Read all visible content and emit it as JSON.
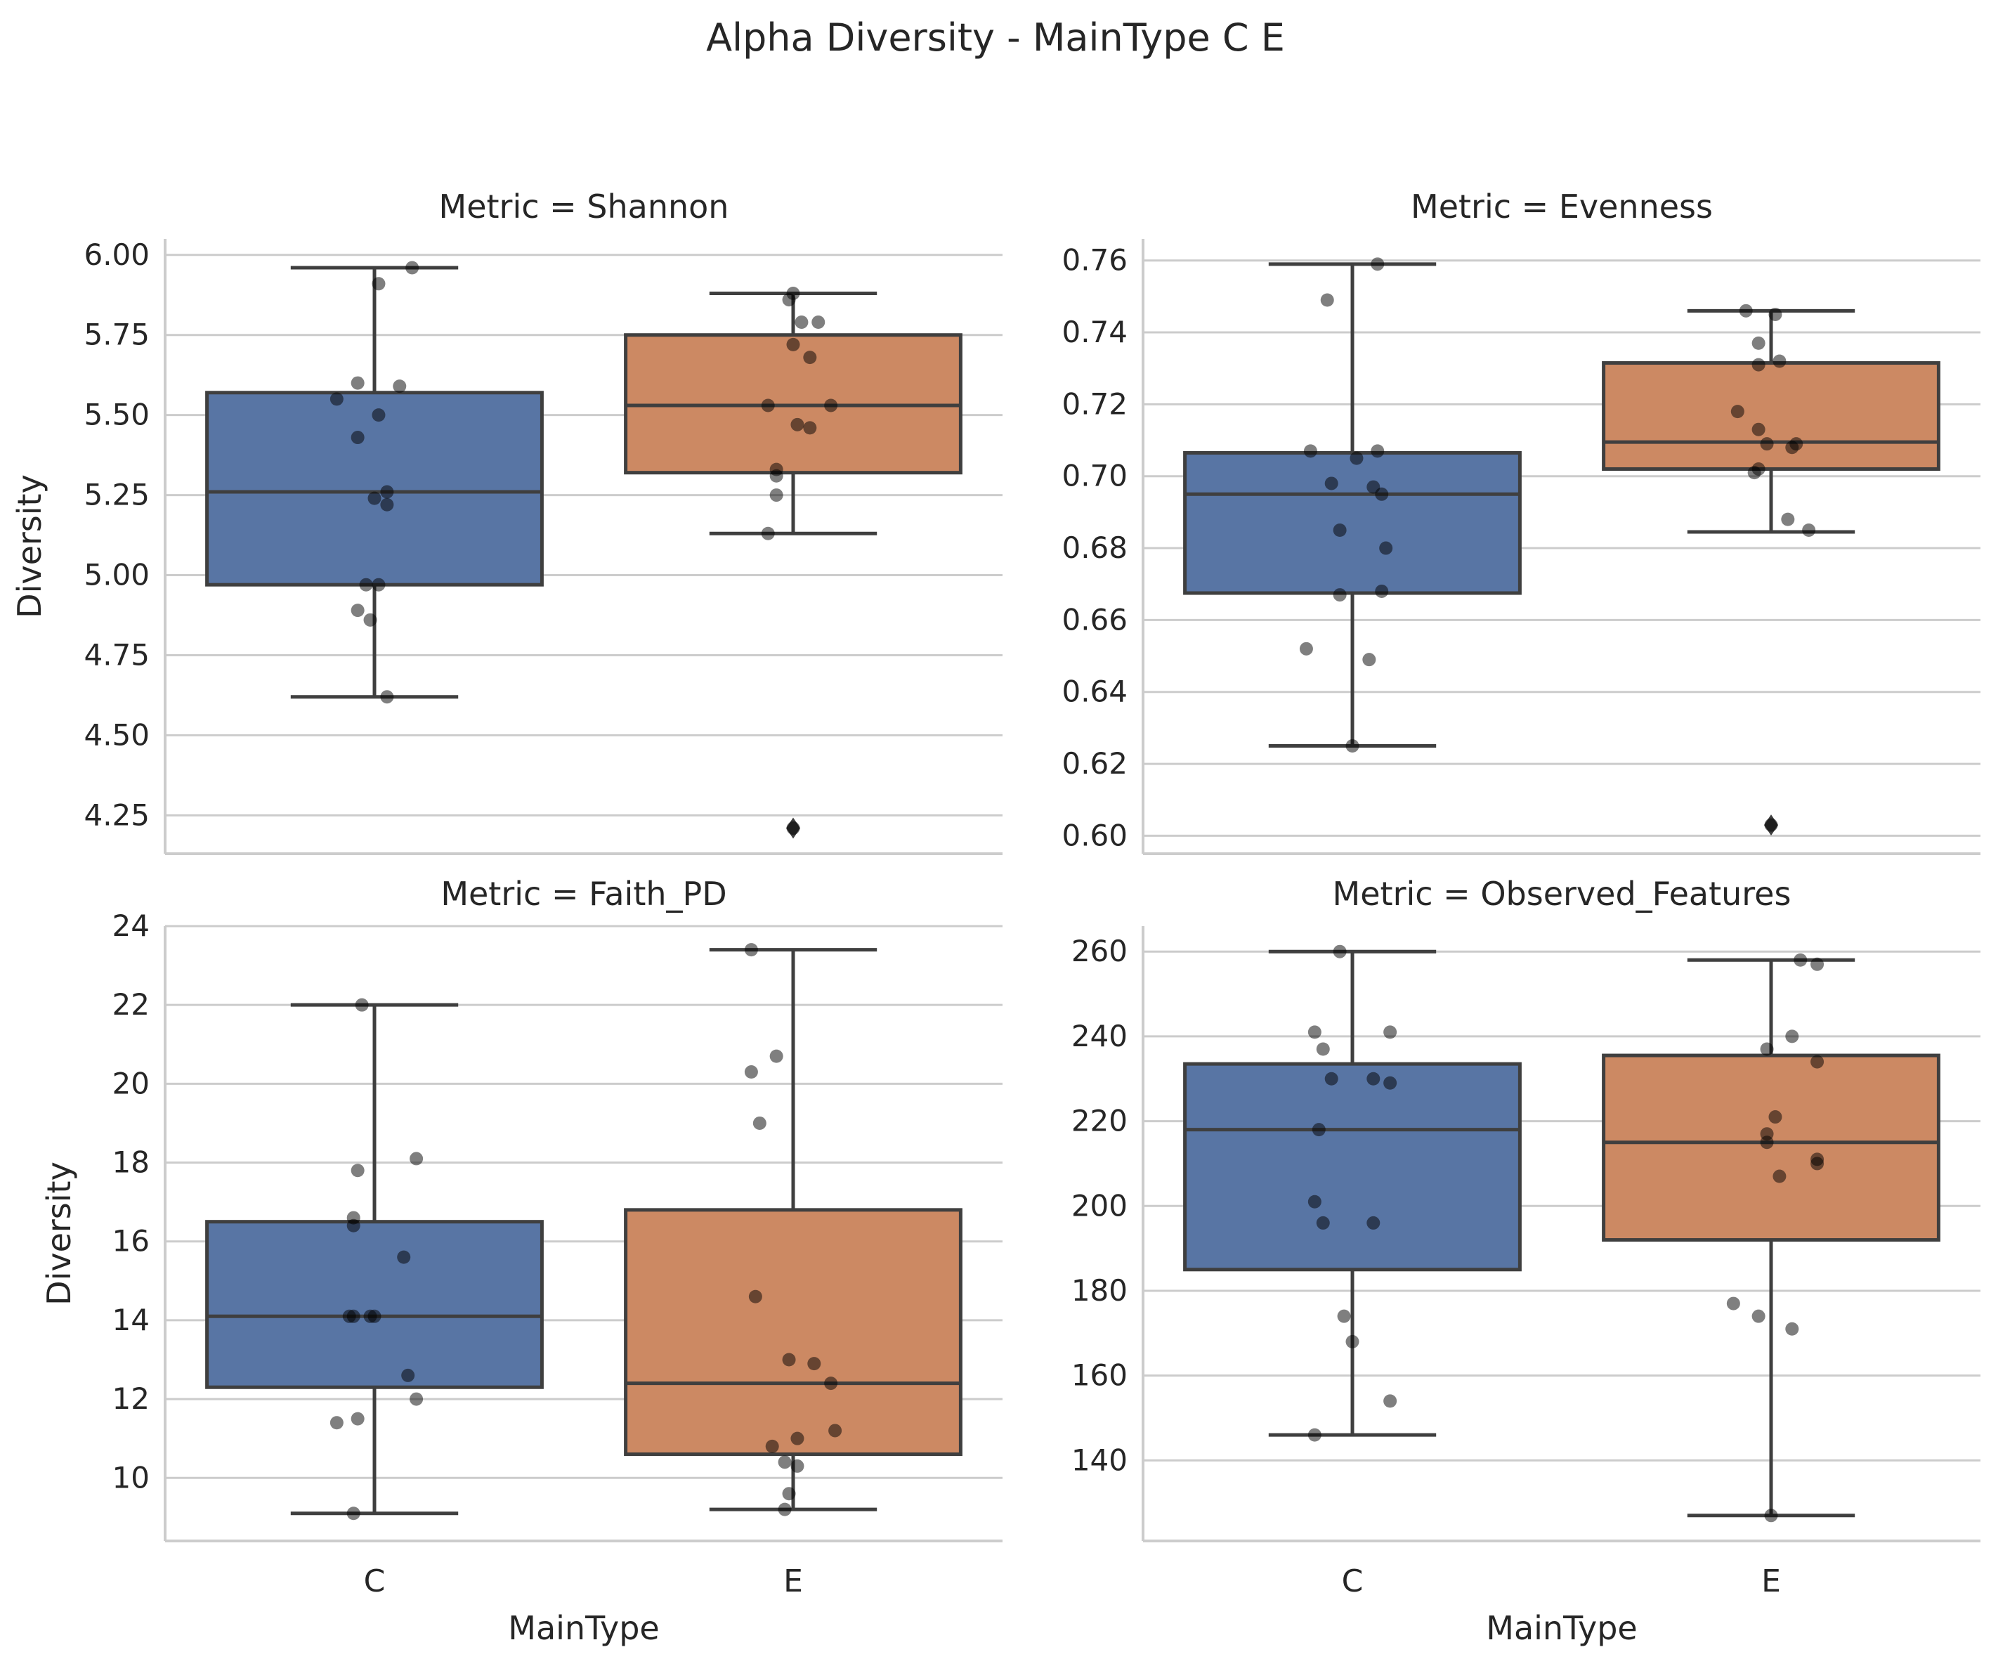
{
  "figure": {
    "title": "Alpha Diversity - MainType C E"
  },
  "colors": {
    "C": "#5875a4",
    "E": "#cc8963",
    "grid": "#cccccc",
    "box_edge": "#3f3f3f",
    "points": "#000000",
    "spine": "#cccccc"
  },
  "chart_data": [
    {
      "type": "box",
      "title": "Metric = Shannon",
      "xlabel": "",
      "ylabel": "Diversity",
      "categories": [
        "C",
        "E"
      ],
      "show_x_ticklabels": false,
      "ylim": [
        4.13,
        6.05
      ],
      "yticks": [
        4.25,
        4.5,
        4.75,
        5.0,
        5.25,
        5.5,
        5.75,
        6.0
      ],
      "ytick_labels": [
        "4.25",
        "4.50",
        "4.75",
        "5.00",
        "5.25",
        "5.50",
        "5.75",
        "6.00"
      ],
      "boxes": [
        {
          "category": "C",
          "whisker_low": 4.62,
          "q1": 4.97,
          "median": 5.26,
          "q3": 5.57,
          "whisker_high": 5.96,
          "outliers": []
        },
        {
          "category": "E",
          "whisker_low": 5.13,
          "q1": 5.32,
          "median": 5.53,
          "q3": 5.75,
          "whisker_high": 5.88,
          "outliers": [
            4.21
          ]
        }
      ],
      "points": [
        {
          "category": "C",
          "values": [
            5.96,
            5.91,
            5.6,
            5.59,
            5.55,
            5.5,
            5.43,
            5.26,
            5.24,
            5.22,
            4.97,
            4.97,
            4.89,
            4.86,
            4.62
          ],
          "offsets": [
            0.09,
            0.01,
            -0.04,
            0.06,
            -0.09,
            0.01,
            -0.04,
            0.03,
            0.0,
            0.03,
            -0.02,
            0.01,
            -0.04,
            -0.01,
            0.03
          ]
        },
        {
          "category": "E",
          "values": [
            5.88,
            5.86,
            5.79,
            5.79,
            5.72,
            5.68,
            5.53,
            5.53,
            5.47,
            5.46,
            5.33,
            5.31,
            5.25,
            5.13,
            4.21
          ],
          "offsets": [
            0.0,
            -0.01,
            0.02,
            0.06,
            0.0,
            0.04,
            -0.06,
            0.09,
            0.01,
            0.04,
            -0.04,
            -0.04,
            -0.04,
            -0.06,
            0.0
          ]
        }
      ]
    },
    {
      "type": "box",
      "title": "Metric = Evenness",
      "xlabel": "",
      "ylabel": "",
      "categories": [
        "C",
        "E"
      ],
      "show_x_ticklabels": false,
      "ylim": [
        0.595,
        0.766
      ],
      "yticks": [
        0.6,
        0.62,
        0.64,
        0.66,
        0.68,
        0.7,
        0.72,
        0.74,
        0.76
      ],
      "ytick_labels": [
        "0.60",
        "0.62",
        "0.64",
        "0.66",
        "0.68",
        "0.70",
        "0.72",
        "0.74",
        "0.76"
      ],
      "boxes": [
        {
          "category": "C",
          "whisker_low": 0.625,
          "q1": 0.6675,
          "median": 0.695,
          "q3": 0.7065,
          "whisker_high": 0.759,
          "outliers": []
        },
        {
          "category": "E",
          "whisker_low": 0.6845,
          "q1": 0.702,
          "median": 0.7095,
          "q3": 0.7315,
          "whisker_high": 0.746,
          "outliers": [
            0.603
          ]
        }
      ],
      "points": [
        {
          "category": "C",
          "values": [
            0.759,
            0.749,
            0.707,
            0.707,
            0.705,
            0.698,
            0.697,
            0.695,
            0.685,
            0.68,
            0.668,
            0.667,
            0.652,
            0.649,
            0.625
          ],
          "offsets": [
            0.06,
            -0.06,
            -0.1,
            0.06,
            0.01,
            -0.05,
            0.05,
            0.07,
            -0.03,
            0.08,
            0.07,
            -0.03,
            -0.11,
            0.04,
            0.0
          ]
        },
        {
          "category": "E",
          "values": [
            0.746,
            0.745,
            0.737,
            0.732,
            0.731,
            0.718,
            0.713,
            0.709,
            0.709,
            0.708,
            0.702,
            0.701,
            0.688,
            0.685,
            0.603
          ],
          "offsets": [
            -0.06,
            0.01,
            -0.03,
            0.02,
            -0.03,
            -0.08,
            -0.03,
            -0.01,
            0.06,
            0.05,
            -0.03,
            -0.04,
            0.04,
            0.09,
            0.0
          ]
        }
      ]
    },
    {
      "type": "box",
      "title": "Metric = Faith_PD",
      "xlabel": "MainType",
      "ylabel": "Diversity",
      "categories": [
        "C",
        "E"
      ],
      "show_x_ticklabels": true,
      "ylim": [
        8.4,
        24.0
      ],
      "yticks": [
        10,
        12,
        14,
        16,
        18,
        20,
        22,
        24
      ],
      "ytick_labels": [
        "10",
        "12",
        "14",
        "16",
        "18",
        "20",
        "22",
        "24"
      ],
      "boxes": [
        {
          "category": "C",
          "whisker_low": 9.1,
          "q1": 12.3,
          "median": 14.1,
          "q3": 16.5,
          "whisker_high": 22.0,
          "outliers": []
        },
        {
          "category": "E",
          "whisker_low": 9.2,
          "q1": 10.6,
          "median": 12.4,
          "q3": 16.8,
          "whisker_high": 23.4,
          "outliers": []
        }
      ],
      "points": [
        {
          "category": "C",
          "values": [
            22.0,
            18.1,
            17.8,
            16.6,
            16.4,
            15.6,
            14.1,
            14.1,
            14.1,
            14.1,
            12.6,
            12.0,
            11.5,
            11.4,
            9.1
          ],
          "offsets": [
            -0.03,
            0.1,
            -0.04,
            -0.05,
            -0.05,
            0.07,
            -0.06,
            -0.05,
            -0.01,
            0.0,
            0.08,
            0.1,
            -0.04,
            -0.09,
            -0.05
          ]
        },
        {
          "category": "E",
          "values": [
            23.4,
            20.7,
            20.3,
            19.0,
            14.6,
            13.0,
            12.9,
            12.4,
            11.2,
            11.0,
            10.8,
            10.4,
            10.3,
            9.6,
            9.2
          ],
          "offsets": [
            -0.1,
            -0.04,
            -0.1,
            -0.08,
            -0.09,
            -0.01,
            0.05,
            0.09,
            0.1,
            0.01,
            -0.05,
            -0.02,
            0.01,
            -0.01,
            -0.02
          ]
        }
      ]
    },
    {
      "type": "box",
      "title": "Metric = Observed_Features",
      "xlabel": "MainType",
      "ylabel": "",
      "categories": [
        "C",
        "E"
      ],
      "show_x_ticklabels": true,
      "ylim": [
        121,
        266
      ],
      "yticks": [
        140,
        160,
        180,
        200,
        220,
        240,
        260
      ],
      "ytick_labels": [
        "140",
        "160",
        "180",
        "200",
        "220",
        "240",
        "260"
      ],
      "boxes": [
        {
          "category": "C",
          "whisker_low": 146,
          "q1": 185,
          "median": 218,
          "q3": 233.5,
          "whisker_high": 260,
          "outliers": []
        },
        {
          "category": "E",
          "whisker_low": 127,
          "q1": 192,
          "median": 215,
          "q3": 235.5,
          "whisker_high": 258,
          "outliers": []
        }
      ],
      "points": [
        {
          "category": "C",
          "values": [
            260,
            241,
            241,
            237,
            230,
            230,
            229,
            218,
            201,
            196,
            196,
            174,
            168,
            154,
            146
          ],
          "offsets": [
            -0.03,
            -0.09,
            0.09,
            -0.07,
            -0.05,
            0.05,
            0.09,
            -0.08,
            -0.09,
            -0.07,
            0.05,
            -0.02,
            0.0,
            0.09,
            -0.09
          ]
        },
        {
          "category": "E",
          "values": [
            258,
            257,
            240,
            237,
            234,
            221,
            217,
            215,
            211,
            210,
            207,
            177,
            174,
            171,
            127
          ],
          "offsets": [
            0.07,
            0.11,
            0.05,
            -0.01,
            0.11,
            0.01,
            -0.01,
            -0.01,
            0.11,
            0.11,
            0.02,
            -0.09,
            -0.03,
            0.05,
            0.0
          ]
        }
      ]
    }
  ]
}
